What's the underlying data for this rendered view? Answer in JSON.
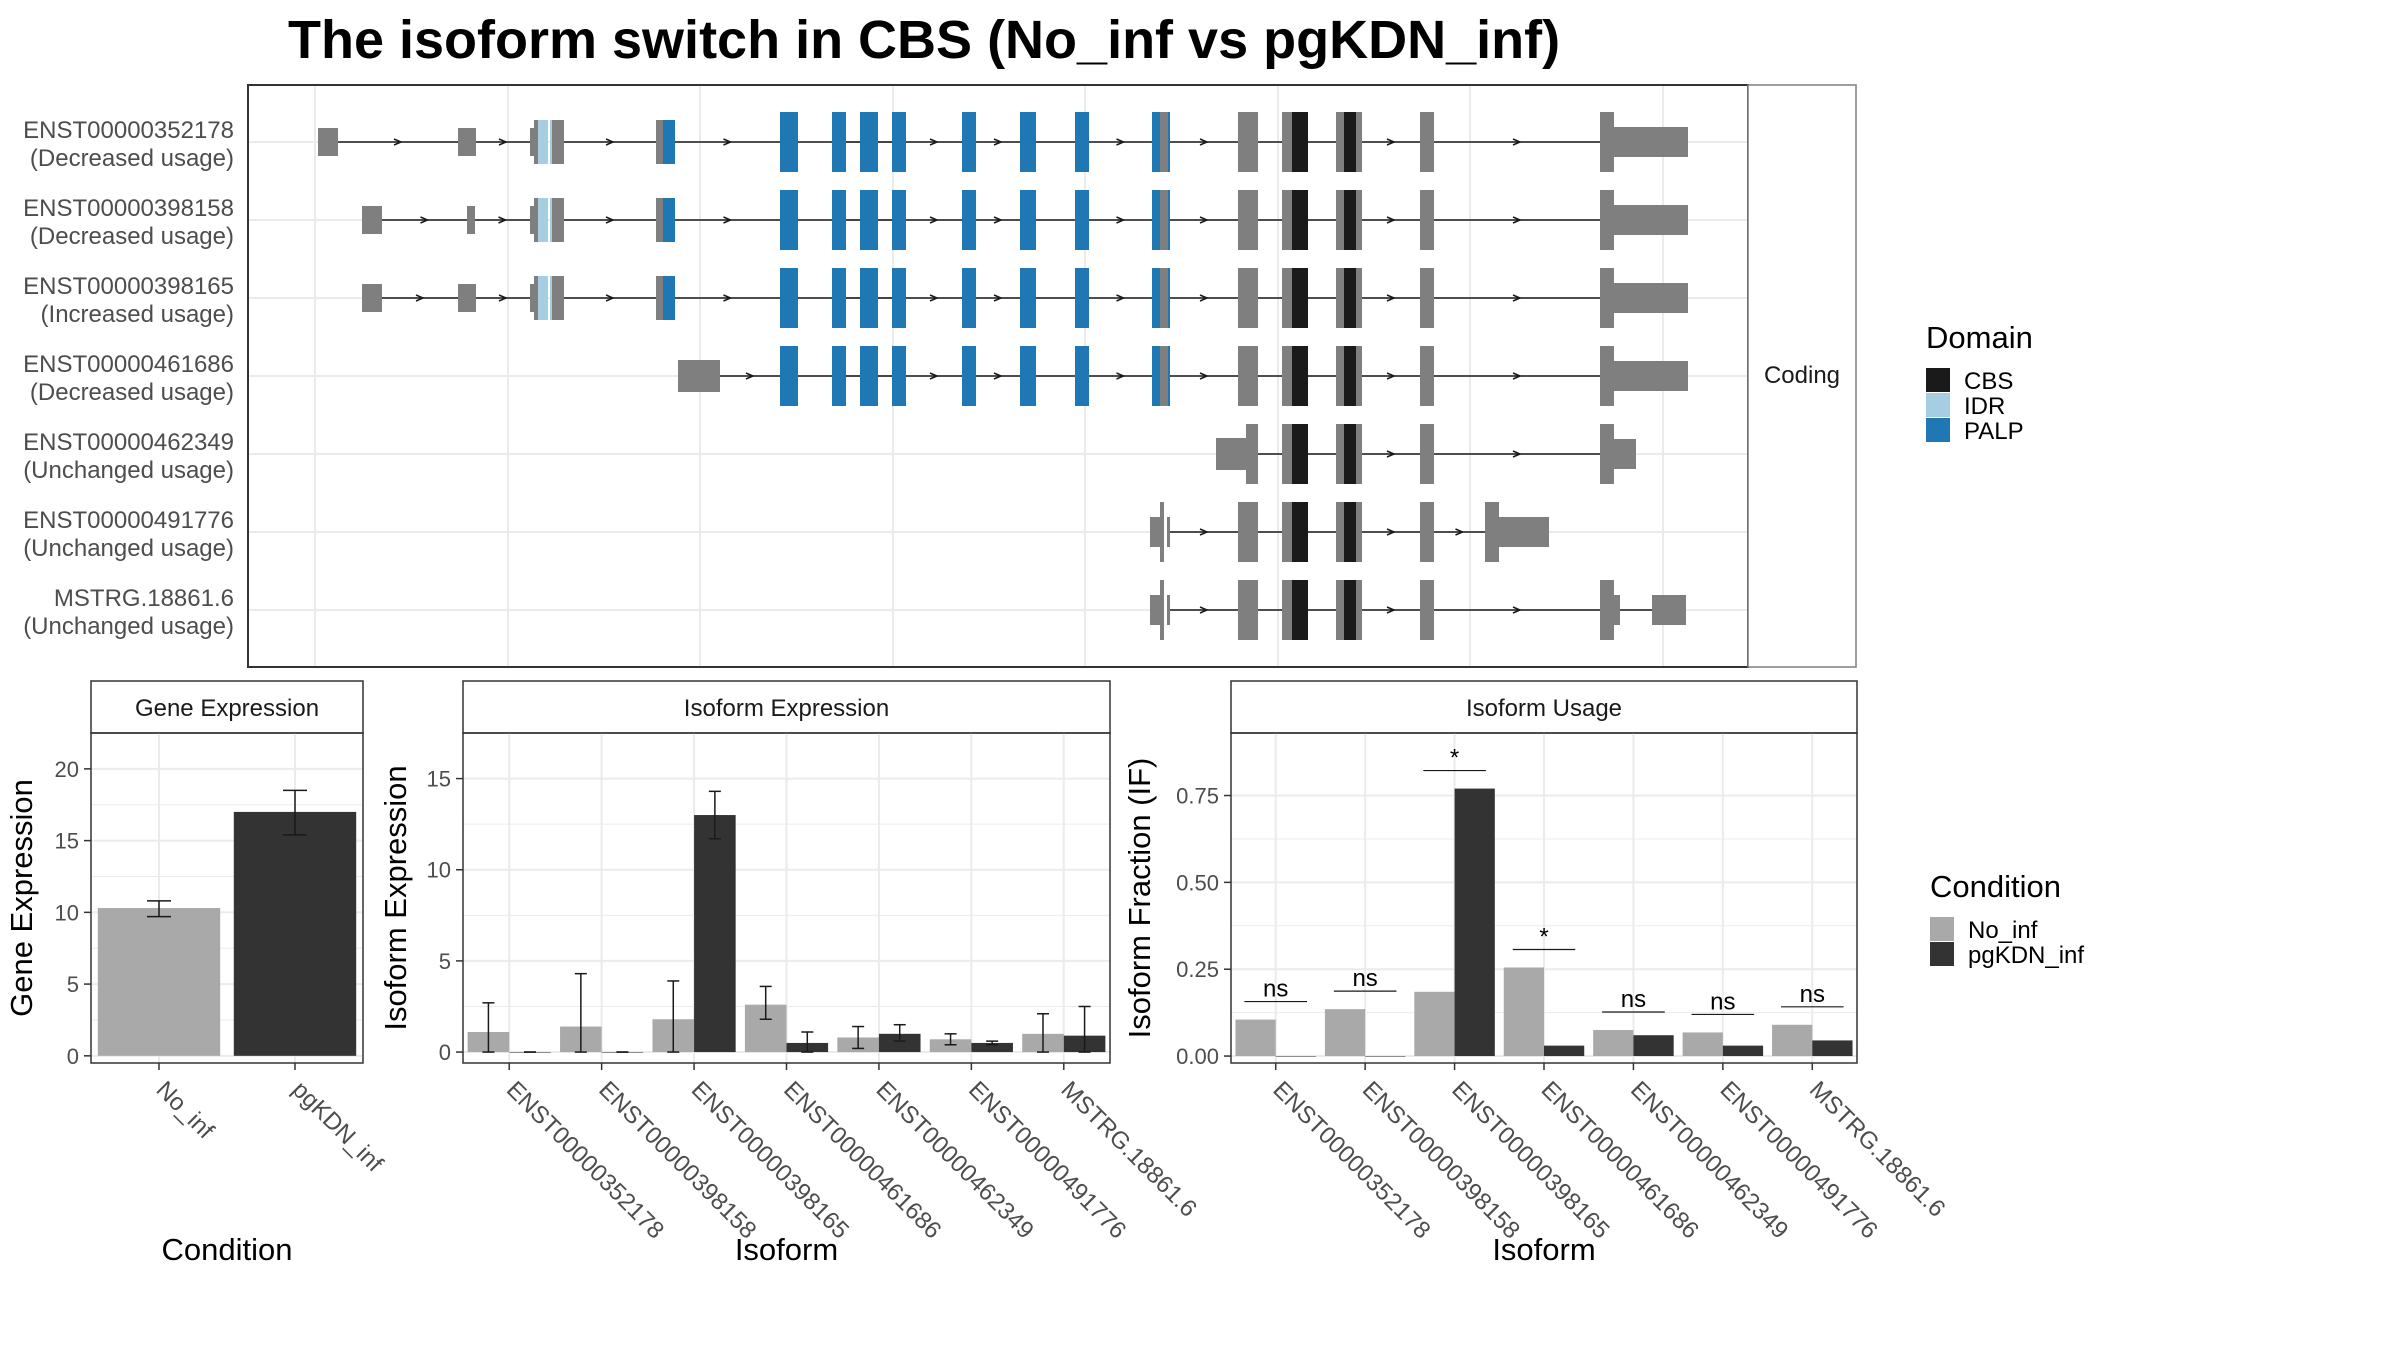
{
  "title": "The isoform switch in CBS (No_inf vs pgKDN_inf)",
  "colors": {
    "CBS": "#1a1a1a",
    "IDR": "#a6cee3",
    "PALP": "#1f78b4",
    "noncoding": "#7f7f7f",
    "No_inf": "#a9a9a9",
    "pgKDN_inf": "#333333",
    "grid": "#ebebeb",
    "panel_border": "#333333",
    "strip_border": "#7f7f7f"
  },
  "chart_data": [
    {
      "type": "gene-structure",
      "strip_label": "Coding",
      "legend": {
        "title": "Domain",
        "items": [
          "CBS",
          "IDR",
          "PALP"
        ]
      },
      "isoforms": [
        {
          "id": "ENST00000352178",
          "usage": "(Decreased usage)"
        },
        {
          "id": "ENST00000398158",
          "usage": "(Decreased usage)"
        },
        {
          "id": "ENST00000398165",
          "usage": "(Increased usage)"
        },
        {
          "id": "ENST00000461686",
          "usage": "(Decreased usage)"
        },
        {
          "id": "ENST00000462349",
          "usage": "(Unchanged usage)"
        },
        {
          "id": "ENST00000491776",
          "usage": "(Unchanged usage)"
        },
        {
          "id": "MSTRG.18861.6",
          "usage": "(Unchanged usage)"
        }
      ]
    },
    {
      "type": "bar",
      "strip_title": "Gene Expression",
      "xlabel": "Condition",
      "ylabel": "Gene Expression",
      "categories": [
        "No_inf",
        "pgKDN_inf"
      ],
      "values": [
        10.3,
        17.0
      ],
      "error_low": [
        9.7,
        15.4
      ],
      "error_high": [
        10.8,
        18.5
      ],
      "yticks": [
        0,
        5,
        10,
        15,
        20
      ],
      "ylim": [
        -0.5,
        22.5
      ]
    },
    {
      "type": "bar",
      "strip_title": "Isoform Expression",
      "xlabel": "Isoform",
      "ylabel": "Isoform Expression",
      "categories": [
        "ENST00000352178",
        "ENST00000398158",
        "ENST00000398165",
        "ENST00000461686",
        "ENST00000462349",
        "ENST00000491776",
        "MSTRG.18861.6"
      ],
      "series": [
        {
          "name": "No_inf",
          "values": [
            1.1,
            1.4,
            1.8,
            2.6,
            0.8,
            0.7,
            1.0
          ],
          "low": [
            0.0,
            0.0,
            0.0,
            1.8,
            0.2,
            0.4,
            0.0
          ],
          "high": [
            2.7,
            4.3,
            3.9,
            3.6,
            1.4,
            1.0,
            2.1
          ]
        },
        {
          "name": "pgKDN_inf",
          "values": [
            0.0,
            0.0,
            13.0,
            0.5,
            1.0,
            0.5,
            0.9
          ],
          "low": [
            0.0,
            0.0,
            11.7,
            0.0,
            0.6,
            0.4,
            0.0
          ],
          "high": [
            0.0,
            0.0,
            14.3,
            1.1,
            1.5,
            0.6,
            2.5
          ]
        }
      ],
      "yticks": [
        0,
        5,
        10,
        15
      ],
      "ylim": [
        -0.6,
        17.5
      ]
    },
    {
      "type": "bar",
      "strip_title": "Isoform Usage",
      "xlabel": "Isoform",
      "ylabel": "Isoform Fraction (IF)",
      "categories": [
        "ENST00000352178",
        "ENST00000398158",
        "ENST00000398165",
        "ENST00000461686",
        "ENST00000462349",
        "ENST00000491776",
        "MSTRG.18861.6"
      ],
      "series": [
        {
          "name": "No_inf",
          "values": [
            0.105,
            0.135,
            0.185,
            0.255,
            0.075,
            0.068,
            0.09
          ]
        },
        {
          "name": "pgKDN_inf",
          "values": [
            0.0,
            0.0,
            0.77,
            0.03,
            0.06,
            0.03,
            0.045
          ]
        }
      ],
      "significance": [
        "ns",
        "ns",
        "*",
        "*",
        "ns",
        "ns",
        "ns"
      ],
      "yticks": [
        0.0,
        0.25,
        0.5,
        0.75
      ],
      "ytick_labels": [
        "0.00",
        "0.25",
        "0.50",
        "0.75"
      ],
      "ylim": [
        -0.02,
        0.93
      ],
      "legend": {
        "title": "Condition",
        "items": [
          "No_inf",
          "pgKDN_inf"
        ]
      }
    }
  ]
}
